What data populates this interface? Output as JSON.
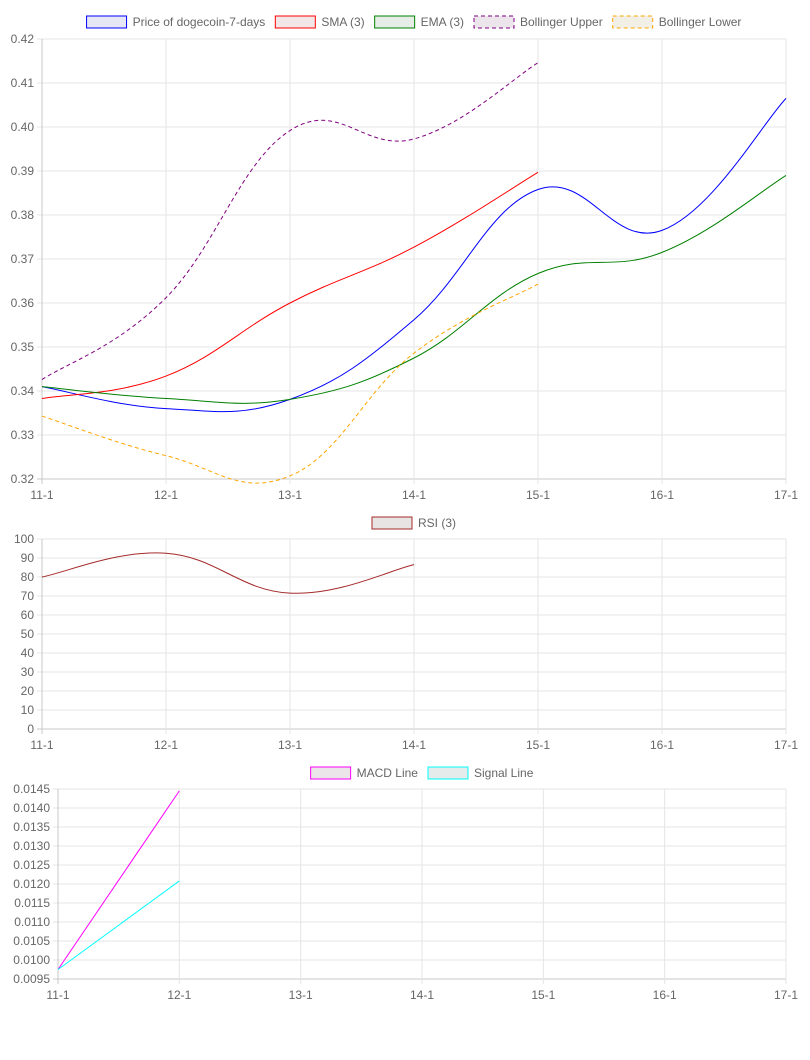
{
  "chart_data": [
    {
      "type": "line",
      "categories": [
        "11-1",
        "12-1",
        "13-1",
        "14-1",
        "15-1",
        "16-1",
        "17-1"
      ],
      "ylim": [
        0.32,
        0.42
      ],
      "yticks": [
        "0.42",
        "0.41",
        "0.40",
        "0.39",
        "0.38",
        "0.37",
        "0.36",
        "0.35",
        "0.34",
        "0.33",
        "0.32"
      ],
      "grid": true,
      "legend_position": "top",
      "series": [
        {
          "name": "Price of dogecoin-7-days",
          "color": "#0000ff",
          "dashed": false,
          "fill": "#e6e6f5",
          "values": [
            0.341,
            0.336,
            0.3381,
            0.3562,
            0.3858,
            0.3765,
            0.4065
          ]
        },
        {
          "name": "SMA (3)",
          "color": "#ff0000",
          "dashed": false,
          "fill": "#f2e6e6",
          "values": [
            0.3383,
            0.3434,
            0.36,
            0.3727,
            0.3897,
            null,
            null
          ]
        },
        {
          "name": "EMA (3)",
          "color": "#008000",
          "dashed": false,
          "fill": "#e6ede6",
          "values": [
            0.341,
            0.3383,
            0.3381,
            0.3475,
            0.3667,
            0.3715,
            0.389
          ]
        },
        {
          "name": "Bollinger Upper",
          "color": "#800080",
          "dashed": true,
          "fill": "#ece6ec",
          "values": [
            0.3426,
            0.3612,
            0.3992,
            0.3973,
            0.4146,
            null,
            null
          ]
        },
        {
          "name": "Bollinger Lower",
          "color": "#ffa500",
          "dashed": true,
          "fill": "#f2efe6",
          "values": [
            0.3343,
            0.3253,
            0.3207,
            0.3486,
            0.3643,
            null,
            null
          ]
        }
      ]
    },
    {
      "type": "line",
      "categories": [
        "11-1",
        "12-1",
        "13-1",
        "14-1",
        "15-1",
        "16-1",
        "17-1"
      ],
      "ylim": [
        0,
        100
      ],
      "yticks": [
        "100",
        "90",
        "80",
        "70",
        "60",
        "50",
        "40",
        "30",
        "20",
        "10",
        "0"
      ],
      "grid": true,
      "legend_position": "top",
      "series": [
        {
          "name": "RSI (3)",
          "color": "#a52a2a",
          "dashed": false,
          "fill": "#e8e4e4",
          "values": [
            80,
            92.5,
            71.5,
            86.5,
            null,
            null,
            null
          ]
        }
      ]
    },
    {
      "type": "line",
      "categories": [
        "11-1",
        "12-1",
        "13-1",
        "14-1",
        "15-1",
        "16-1",
        "17-1"
      ],
      "ylim": [
        0.0095,
        0.0145
      ],
      "yticks": [
        "0.0145",
        "0.0140",
        "0.0135",
        "0.0130",
        "0.0125",
        "0.0120",
        "0.0115",
        "0.0110",
        "0.0105",
        "0.0100",
        "0.0095"
      ],
      "grid": true,
      "legend_position": "top",
      "series": [
        {
          "name": "MACD Line",
          "color": "#ff00ff",
          "dashed": false,
          "fill": "#ebe5ea",
          "values": [
            0.00975,
            0.01445,
            null,
            null,
            null,
            null,
            null
          ]
        },
        {
          "name": "Signal Line",
          "color": "#00ffff",
          "dashed": false,
          "fill": "#e5eaea",
          "values": [
            0.00975,
            0.01208,
            null,
            null,
            null,
            null,
            null
          ]
        }
      ]
    }
  ]
}
